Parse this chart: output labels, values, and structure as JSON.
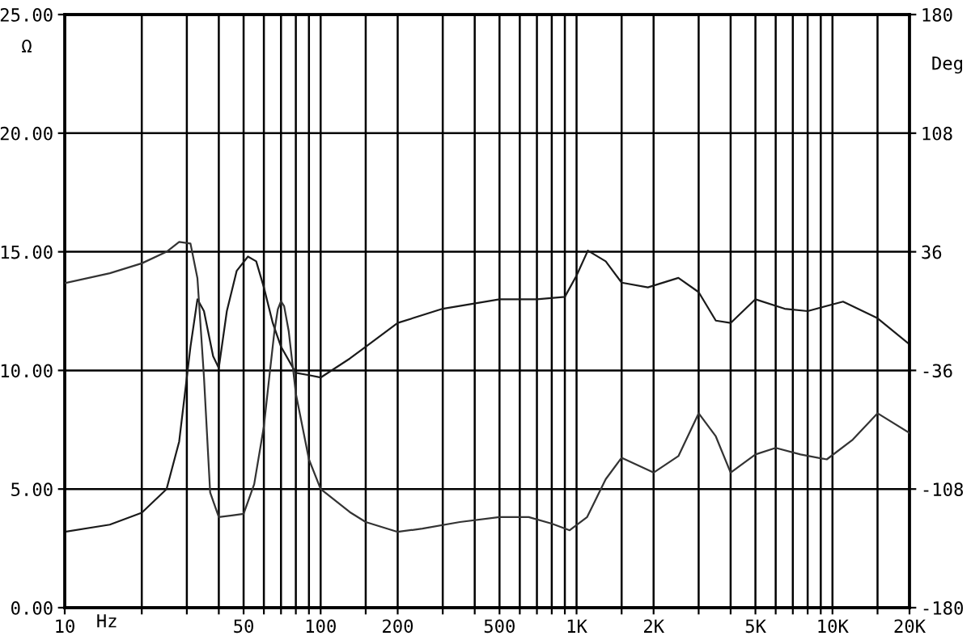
{
  "chart_data": {
    "type": "line",
    "xlabel": "Hz",
    "ylabel": "Ω",
    "y2label": "Deg",
    "log": "x",
    "grid": true,
    "line_style": "solid",
    "marker": "none",
    "xlim": [
      10,
      20000
    ],
    "xticks": [
      10,
      {
        "value": 20,
        "label": null
      },
      {
        "value": 30,
        "label": null
      },
      {
        "value": 40,
        "label": null
      },
      50,
      {
        "value": 60,
        "label": null
      },
      {
        "value": 70,
        "label": null
      },
      {
        "value": 80,
        "label": null
      },
      {
        "value": 90,
        "label": null
      },
      100,
      {
        "value": 150,
        "label": null
      },
      200,
      {
        "value": 300,
        "label": null
      },
      {
        "value": 400,
        "label": null
      },
      500,
      {
        "value": 600,
        "label": null
      },
      {
        "value": 700,
        "label": null
      },
      {
        "value": 800,
        "label": null
      },
      {
        "value": 900,
        "label": null
      },
      {
        "value": 1000,
        "label": "1K"
      },
      {
        "value": 1500,
        "label": null
      },
      {
        "value": 2000,
        "label": "2K"
      },
      {
        "value": 3000,
        "label": null
      },
      {
        "value": 4000,
        "label": null
      },
      {
        "value": 5000,
        "label": "5K"
      },
      {
        "value": 6000,
        "label": null
      },
      {
        "value": 7000,
        "label": null
      },
      {
        "value": 8000,
        "label": null
      },
      {
        "value": 9000,
        "label": null
      },
      {
        "value": 10000,
        "label": "10K"
      },
      {
        "value": 15000,
        "label": null
      },
      {
        "value": 20000,
        "label": "20K"
      }
    ],
    "ylim": [
      0,
      25
    ],
    "yticks": [
      {
        "value": 0,
        "label": "0.00"
      },
      {
        "value": 5,
        "label": "5.00"
      },
      {
        "value": 10,
        "label": "10.00"
      },
      {
        "value": 15,
        "label": "15.00"
      },
      {
        "value": 20,
        "label": "20.00"
      },
      {
        "value": 25,
        "label": "25.00"
      }
    ],
    "y2lim": [
      -180,
      180
    ],
    "y2ticks": [
      -180,
      -108,
      -36,
      36,
      108,
      180
    ],
    "series": [
      {
        "color": "#1a1a1a",
        "x": [
          10,
          15,
          20,
          25,
          28,
          31,
          33,
          35,
          38,
          40,
          43,
          47,
          52,
          56,
          60,
          65,
          70,
          80,
          90,
          100,
          130,
          150,
          200,
          300,
          500,
          700,
          900,
          1000,
          1107,
          1300,
          1500,
          1900,
          2500,
          3000,
          3500,
          4000,
          5000,
          6500,
          8000,
          11000,
          15000,
          20000
        ],
        "values": [
          3.2,
          3.5,
          4.0,
          5.0,
          7.0,
          11.0,
          13.0,
          12.5,
          10.6,
          10.1,
          12.5,
          14.2,
          14.8,
          14.6,
          13.5,
          12.0,
          11.0,
          9.9,
          9.8,
          9.7,
          10.5,
          11.0,
          12.0,
          12.6,
          13.0,
          13.0,
          13.1,
          14.0,
          15.05,
          14.6,
          13.7,
          13.5,
          13.9,
          13.3,
          12.1,
          12.0,
          13.0,
          12.6,
          12.5,
          12.9,
          12.2,
          11.1
        ]
      },
      {
        "color": "#333333",
        "axis": "y2",
        "x": [
          10,
          15,
          20,
          25,
          28,
          31,
          33,
          35,
          37,
          40,
          45,
          50,
          55,
          60,
          63,
          66,
          68,
          70,
          72,
          75,
          78,
          80,
          90,
          100,
          130,
          150,
          200,
          250,
          350,
          500,
          650,
          800,
          940,
          1100,
          1300,
          1500,
          2000,
          2500,
          3000,
          3500,
          4000,
          5000,
          6000,
          7500,
          9500,
          12000,
          15000,
          20000
        ],
        "values": [
          17,
          23,
          29,
          36,
          42,
          41,
          20,
          -40,
          -110,
          -125,
          -124,
          -123,
          -105,
          -70,
          -40,
          -12,
          1,
          6,
          3,
          -12,
          -35,
          -50,
          -90,
          -108,
          -122,
          -128,
          -134,
          -132,
          -128,
          -125,
          -125,
          -129,
          -133,
          -125,
          -102,
          -89,
          -98,
          -88,
          -62,
          -76,
          -98,
          -87,
          -83,
          -87,
          -90,
          -78,
          -62,
          -74
        ]
      }
    ]
  }
}
